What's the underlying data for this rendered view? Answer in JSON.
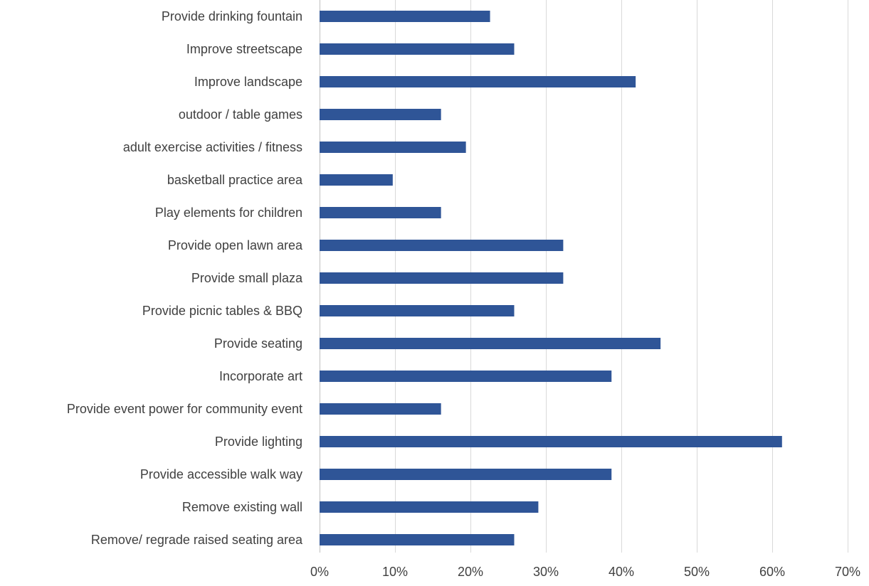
{
  "chart_data": {
    "type": "bar",
    "orientation": "horizontal",
    "title": "",
    "xlabel": "",
    "ylabel": "",
    "xlim": [
      0,
      0.7
    ],
    "x_ticks": [
      0,
      0.1,
      0.2,
      0.3,
      0.4,
      0.5,
      0.6,
      0.7
    ],
    "x_tick_labels": [
      "0%",
      "10%",
      "20%",
      "30%",
      "40%",
      "50%",
      "60%",
      "70%"
    ],
    "grid": "vertical",
    "legend": "none",
    "bar_color": "#2f5597",
    "grid_color": "#d9d9d9",
    "text_color": "#404040",
    "categories": [
      "Provide drinking fountain",
      "Improve streetscape",
      "Improve landscape",
      "outdoor / table games",
      "adult exercise activities / fitness",
      "basketball practice area",
      "Play elements for children",
      "Provide open lawn area",
      "Provide small plaza",
      "Provide picnic tables & BBQ",
      "Provide seating",
      "Incorporate art",
      "Provide event power for community event",
      "Provide lighting",
      "Provide accessible walk way",
      "Remove existing wall",
      "Remove/ regrade raised seating area"
    ],
    "values": [
      0.226,
      0.258,
      0.419,
      0.161,
      0.194,
      0.097,
      0.161,
      0.323,
      0.323,
      0.258,
      0.452,
      0.387,
      0.161,
      0.613,
      0.387,
      0.29,
      0.258
    ]
  }
}
